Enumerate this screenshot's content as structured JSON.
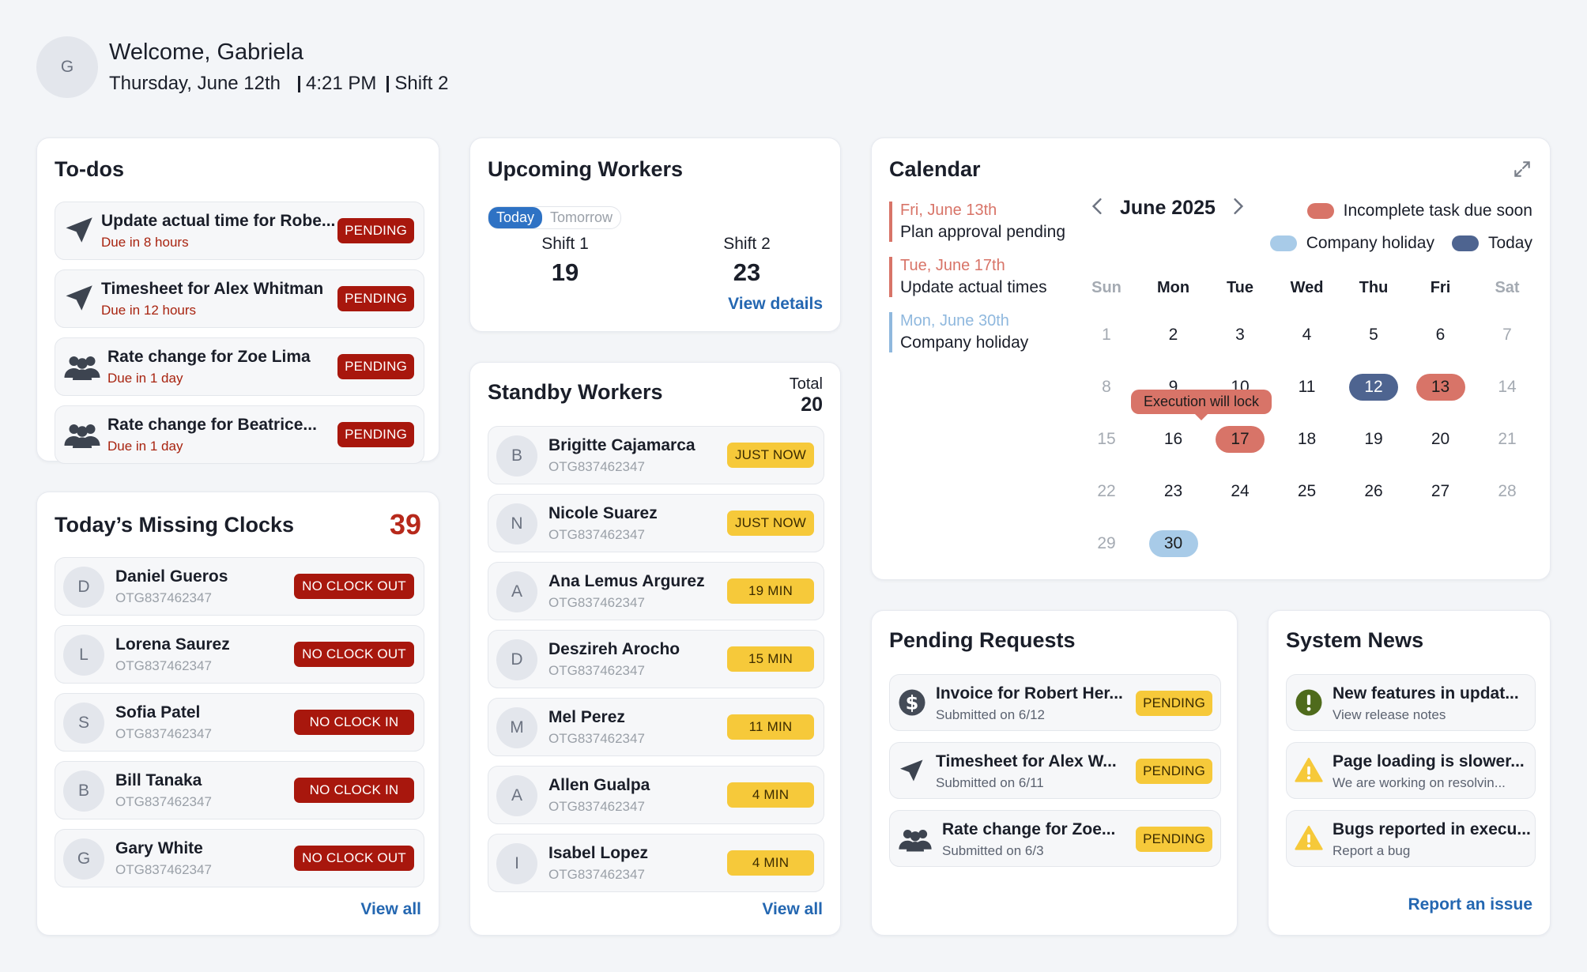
{
  "header": {
    "avatar_initial": "G",
    "welcome": "Welcome, Gabriela",
    "date": "Thursday, June 12th",
    "time": "4:21 PM",
    "shift": "Shift 2"
  },
  "todos": {
    "title": "To-dos",
    "items": [
      {
        "icon": "send-icon",
        "title": "Update actual time for Robe...",
        "due": "Due in 8 hours",
        "status": "PENDING"
      },
      {
        "icon": "send-icon",
        "title": "Timesheet for Alex Whitman",
        "due": "Due in 12 hours",
        "status": "PENDING"
      },
      {
        "icon": "people-icon",
        "title": "Rate change for Zoe Lima",
        "due": "Due in 1 day",
        "status": "PENDING"
      },
      {
        "icon": "people-icon",
        "title": "Rate change for Beatrice...",
        "due": "Due in 1 day",
        "status": "PENDING"
      }
    ]
  },
  "missing": {
    "title": "Today’s Missing Clocks",
    "count": "39",
    "items": [
      {
        "initial": "D",
        "name": "Daniel Gueros",
        "id": "OTG837462347",
        "status": "NO CLOCK OUT"
      },
      {
        "initial": "L",
        "name": "Lorena Saurez",
        "id": "OTG837462347",
        "status": "NO CLOCK OUT"
      },
      {
        "initial": "S",
        "name": "Sofia Patel",
        "id": "OTG837462347",
        "status": "NO CLOCK IN"
      },
      {
        "initial": "B",
        "name": "Bill Tanaka",
        "id": "OTG837462347",
        "status": "NO CLOCK IN"
      },
      {
        "initial": "G",
        "name": "Gary White",
        "id": "OTG837462347",
        "status": "NO CLOCK OUT"
      }
    ],
    "view_all": "View all"
  },
  "upcoming": {
    "title": "Upcoming Workers",
    "tabs": [
      "Today",
      "Tomorrow"
    ],
    "shift1_label": "Shift 1",
    "shift1_count": "19",
    "shift2_label": "Shift 2",
    "shift2_count": "23",
    "view_details": "View details"
  },
  "standby": {
    "title": "Standby Workers",
    "total_label": "Total",
    "total": "20",
    "items": [
      {
        "initial": "B",
        "name": "Brigitte Cajamarca",
        "id": "OTG837462347",
        "status": "JUST NOW"
      },
      {
        "initial": "N",
        "name": "Nicole Suarez",
        "id": "OTG837462347",
        "status": "JUST NOW"
      },
      {
        "initial": "A",
        "name": "Ana Lemus Argurez",
        "id": "OTG837462347",
        "status": "19 MIN"
      },
      {
        "initial": "D",
        "name": "Deszireh Arocho",
        "id": "OTG837462347",
        "status": "15 MIN"
      },
      {
        "initial": "M",
        "name": "Mel Perez",
        "id": "OTG837462347",
        "status": "11 MIN"
      },
      {
        "initial": "A",
        "name": "Allen Gualpa",
        "id": "OTG837462347",
        "status": "4 MIN"
      },
      {
        "initial": "I",
        "name": "Isabel Lopez",
        "id": "OTG837462347",
        "status": "4 MIN"
      }
    ],
    "view_all": "View all"
  },
  "calendar": {
    "title": "Calendar",
    "month": "June 2025",
    "events": [
      {
        "date": "Fri, June 13th",
        "label": "Plan approval pending",
        "color": "#d87468"
      },
      {
        "date": "Tue, June 17th",
        "label": "Update actual times",
        "color": "#d87468"
      },
      {
        "date": "Mon, June 30th",
        "label": "Company holiday",
        "color": "#8fb8de"
      }
    ],
    "legend": {
      "incomplete": "Incomplete task due soon",
      "holiday": "Company holiday",
      "today": "Today"
    },
    "colors": {
      "incomplete": "#d87468",
      "holiday": "#a8cbe8",
      "today": "#4e6490"
    },
    "weekdays": [
      "Sun",
      "Mon",
      "Tue",
      "Wed",
      "Thu",
      "Fri",
      "Sat"
    ],
    "weeks": [
      [
        "1",
        "2",
        "3",
        "4",
        "5",
        "6",
        "7"
      ],
      [
        "8",
        "9",
        "10",
        "11",
        "12",
        "13",
        "14"
      ],
      [
        "15",
        "16",
        "17",
        "18",
        "19",
        "20",
        "21"
      ],
      [
        "22",
        "23",
        "24",
        "25",
        "26",
        "27",
        "28"
      ],
      [
        "29",
        "30",
        "",
        "",
        "",
        "",
        ""
      ]
    ],
    "today": "12",
    "due_dates": [
      "13",
      "17"
    ],
    "holidays": [
      "30"
    ],
    "tooltip": "Execution will lock"
  },
  "requests": {
    "title": "Pending Requests",
    "items": [
      {
        "icon": "dollar-icon",
        "title": "Invoice for Robert Her...",
        "sub": "Submitted on 6/12",
        "status": "PENDING"
      },
      {
        "icon": "send-icon",
        "title": "Timesheet for Alex W...",
        "sub": "Submitted on 6/11",
        "status": "PENDING"
      },
      {
        "icon": "people-icon",
        "title": "Rate change for Zoe...",
        "sub": "Submitted on 6/3",
        "status": "PENDING"
      }
    ]
  },
  "news": {
    "title": "System News",
    "items": [
      {
        "icon": "info-circle-icon",
        "title": "New features in updat...",
        "sub": "View release notes"
      },
      {
        "icon": "warning-icon",
        "title": "Page loading is slower...",
        "sub": "We are working on resolvin..."
      },
      {
        "icon": "warning-icon",
        "title": "Bugs reported in execu...",
        "sub": "Report a bug"
      }
    ],
    "report": "Report an issue"
  }
}
